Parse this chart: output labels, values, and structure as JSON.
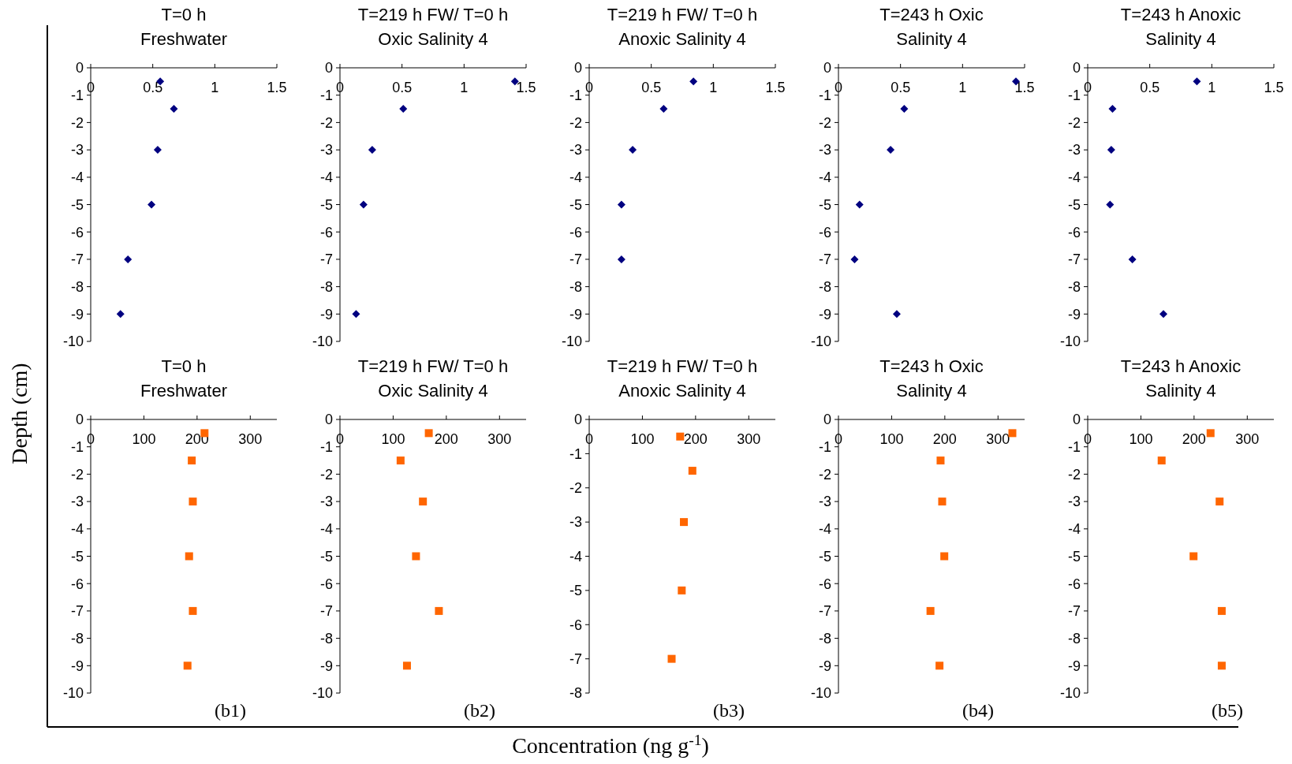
{
  "chart_data": [
    {
      "type": "scatter",
      "title": "T=0 h\nFreshwater",
      "ylabel": "Depth (cm)",
      "marker": "diamond",
      "series": [
        {
          "color": "#000080",
          "x": [
            0.56,
            0.67,
            0.54,
            0.49,
            0.3,
            0.24
          ],
          "values": [
            -0.5,
            -1.5,
            -3,
            -5,
            -7,
            -9
          ]
        }
      ],
      "xlim": [
        0,
        1.5
      ],
      "xticks": [
        0,
        0.5,
        1,
        1.5
      ],
      "ylim": [
        -10,
        0
      ],
      "yticks": [
        0,
        -1,
        -2,
        -3,
        -4,
        -5,
        -6,
        -7,
        -8,
        -9,
        -10
      ],
      "grid": false
    },
    {
      "type": "scatter",
      "title": "T=219 h FW/ T=0 h\nOxic Salinity 4",
      "marker": "diamond",
      "series": [
        {
          "color": "#000080",
          "x": [
            1.41,
            0.51,
            0.26,
            0.19,
            0.13
          ],
          "values": [
            -0.5,
            -1.5,
            -3,
            -5,
            -9
          ]
        }
      ],
      "xlim": [
        0,
        1.5
      ],
      "xticks": [
        0,
        0.5,
        1,
        1.5
      ],
      "ylim": [
        -10,
        0
      ],
      "yticks": [
        0,
        -1,
        -2,
        -3,
        -4,
        -5,
        -6,
        -7,
        -8,
        -9,
        -10
      ],
      "grid": false
    },
    {
      "type": "scatter",
      "title": "T=219 h FW/ T=0 h\nAnoxic Salinity 4",
      "marker": "diamond",
      "series": [
        {
          "color": "#000080",
          "x": [
            0.84,
            0.6,
            0.35,
            0.26,
            0.26
          ],
          "values": [
            -0.5,
            -1.5,
            -3,
            -5,
            -7
          ]
        }
      ],
      "xlim": [
        0,
        1.5
      ],
      "xticks": [
        0,
        0.5,
        1,
        1.5
      ],
      "ylim": [
        -10,
        0
      ],
      "yticks": [
        0,
        -1,
        -2,
        -3,
        -4,
        -5,
        -6,
        -7,
        -8,
        -9,
        -10
      ],
      "grid": false
    },
    {
      "type": "scatter",
      "title": "T=243 h Oxic\nSalinity 4",
      "marker": "diamond",
      "series": [
        {
          "color": "#000080",
          "x": [
            1.43,
            0.53,
            0.42,
            0.17,
            0.13,
            0.47
          ],
          "values": [
            -0.5,
            -1.5,
            -3,
            -5,
            -7,
            -9
          ]
        }
      ],
      "xlim": [
        0,
        1.5
      ],
      "xticks": [
        0,
        0.5,
        1,
        1.5
      ],
      "ylim": [
        -10,
        0
      ],
      "yticks": [
        0,
        -1,
        -2,
        -3,
        -4,
        -5,
        -6,
        -7,
        -8,
        -9,
        -10
      ],
      "grid": false
    },
    {
      "type": "scatter",
      "title": "T=243 h Anoxic\nSalinity 4",
      "marker": "diamond",
      "series": [
        {
          "color": "#000080",
          "x": [
            0.88,
            0.2,
            0.19,
            0.18,
            0.36,
            0.61
          ],
          "values": [
            -0.5,
            -1.5,
            -3,
            -5,
            -7,
            -9
          ]
        }
      ],
      "xlim": [
        0,
        1.5
      ],
      "xticks": [
        0,
        0.5,
        1,
        1.5
      ],
      "ylim": [
        -10,
        0
      ],
      "yticks": [
        0,
        -1,
        -2,
        -3,
        -4,
        -5,
        -6,
        -7,
        -8,
        -9,
        -10
      ],
      "grid": false
    },
    {
      "type": "scatter",
      "title": "T=0 h\nFreshwater",
      "annotations": [
        "(b1)"
      ],
      "marker": "square",
      "series": [
        {
          "color": "#ff6600",
          "x": [
            214,
            190,
            192,
            185,
            192,
            182
          ],
          "values": [
            -0.5,
            -1.5,
            -3,
            -5,
            -7,
            -9
          ]
        }
      ],
      "xlim": [
        0,
        350
      ],
      "xticks": [
        0,
        100,
        200,
        300
      ],
      "ylim": [
        -10,
        0
      ],
      "yticks": [
        0,
        -1,
        -2,
        -3,
        -4,
        -5,
        -6,
        -7,
        -8,
        -9,
        -10
      ],
      "grid": false
    },
    {
      "type": "scatter",
      "title": "T=219 h FW/ T=0 h\nOxic Salinity 4",
      "annotations": [
        "(b2)"
      ],
      "marker": "square",
      "series": [
        {
          "color": "#ff6600",
          "x": [
            167,
            114,
            156,
            143,
            186,
            126
          ],
          "values": [
            -0.5,
            -1.5,
            -3,
            -5,
            -7,
            -9
          ]
        }
      ],
      "xlim": [
        0,
        350
      ],
      "xticks": [
        0,
        100,
        200,
        300
      ],
      "ylim": [
        -10,
        0
      ],
      "yticks": [
        0,
        -1,
        -2,
        -3,
        -4,
        -5,
        -6,
        -7,
        -8,
        -9,
        -10
      ],
      "grid": false
    },
    {
      "type": "scatter",
      "title": "T=219 h FW/ T=0 h\nAnoxic Salinity 4",
      "xlabel": "Concentration (ng g$^{-1}$)",
      "annotations": [
        "(b3)"
      ],
      "marker": "square",
      "series": [
        {
          "color": "#ff6600",
          "x": [
            171,
            194,
            178,
            174,
            155
          ],
          "values": [
            -0.5,
            -1.5,
            -3,
            -5,
            -7
          ]
        }
      ],
      "xlim": [
        0,
        350
      ],
      "xticks": [
        0,
        100,
        200,
        300
      ],
      "ylim": [
        -8,
        0
      ],
      "yticks": [
        0,
        -1,
        -2,
        -3,
        -4,
        -5,
        -6,
        -7,
        -8
      ],
      "grid": false
    },
    {
      "type": "scatter",
      "title": "T=243 h Oxic\nSalinity 4",
      "annotations": [
        "(b4)"
      ],
      "marker": "square",
      "series": [
        {
          "color": "#ff6600",
          "x": [
            327,
            192,
            195,
            199,
            173,
            190
          ],
          "values": [
            -0.5,
            -1.5,
            -3,
            -5,
            -7,
            -9
          ]
        }
      ],
      "xlim": [
        0,
        350
      ],
      "xticks": [
        0,
        100,
        200,
        300
      ],
      "ylim": [
        -10,
        0
      ],
      "yticks": [
        0,
        -1,
        -2,
        -3,
        -4,
        -5,
        -6,
        -7,
        -8,
        -9,
        -10
      ],
      "grid": false
    },
    {
      "type": "scatter",
      "title": "T=243 h Anoxic\nSalinity 4",
      "annotations": [
        "(b5)"
      ],
      "marker": "square",
      "series": [
        {
          "color": "#ff6600",
          "x": [
            231,
            139,
            248,
            199,
            252,
            252
          ],
          "values": [
            -0.5,
            -1.5,
            -3,
            -5,
            -7,
            -9
          ]
        }
      ],
      "xlim": [
        0,
        350
      ],
      "xticks": [
        0,
        100,
        200,
        300
      ],
      "ylim": [
        -10,
        0
      ],
      "yticks": [
        0,
        -1,
        -2,
        -3,
        -4,
        -5,
        -6,
        -7,
        -8,
        -9,
        -10
      ],
      "grid": false
    }
  ]
}
